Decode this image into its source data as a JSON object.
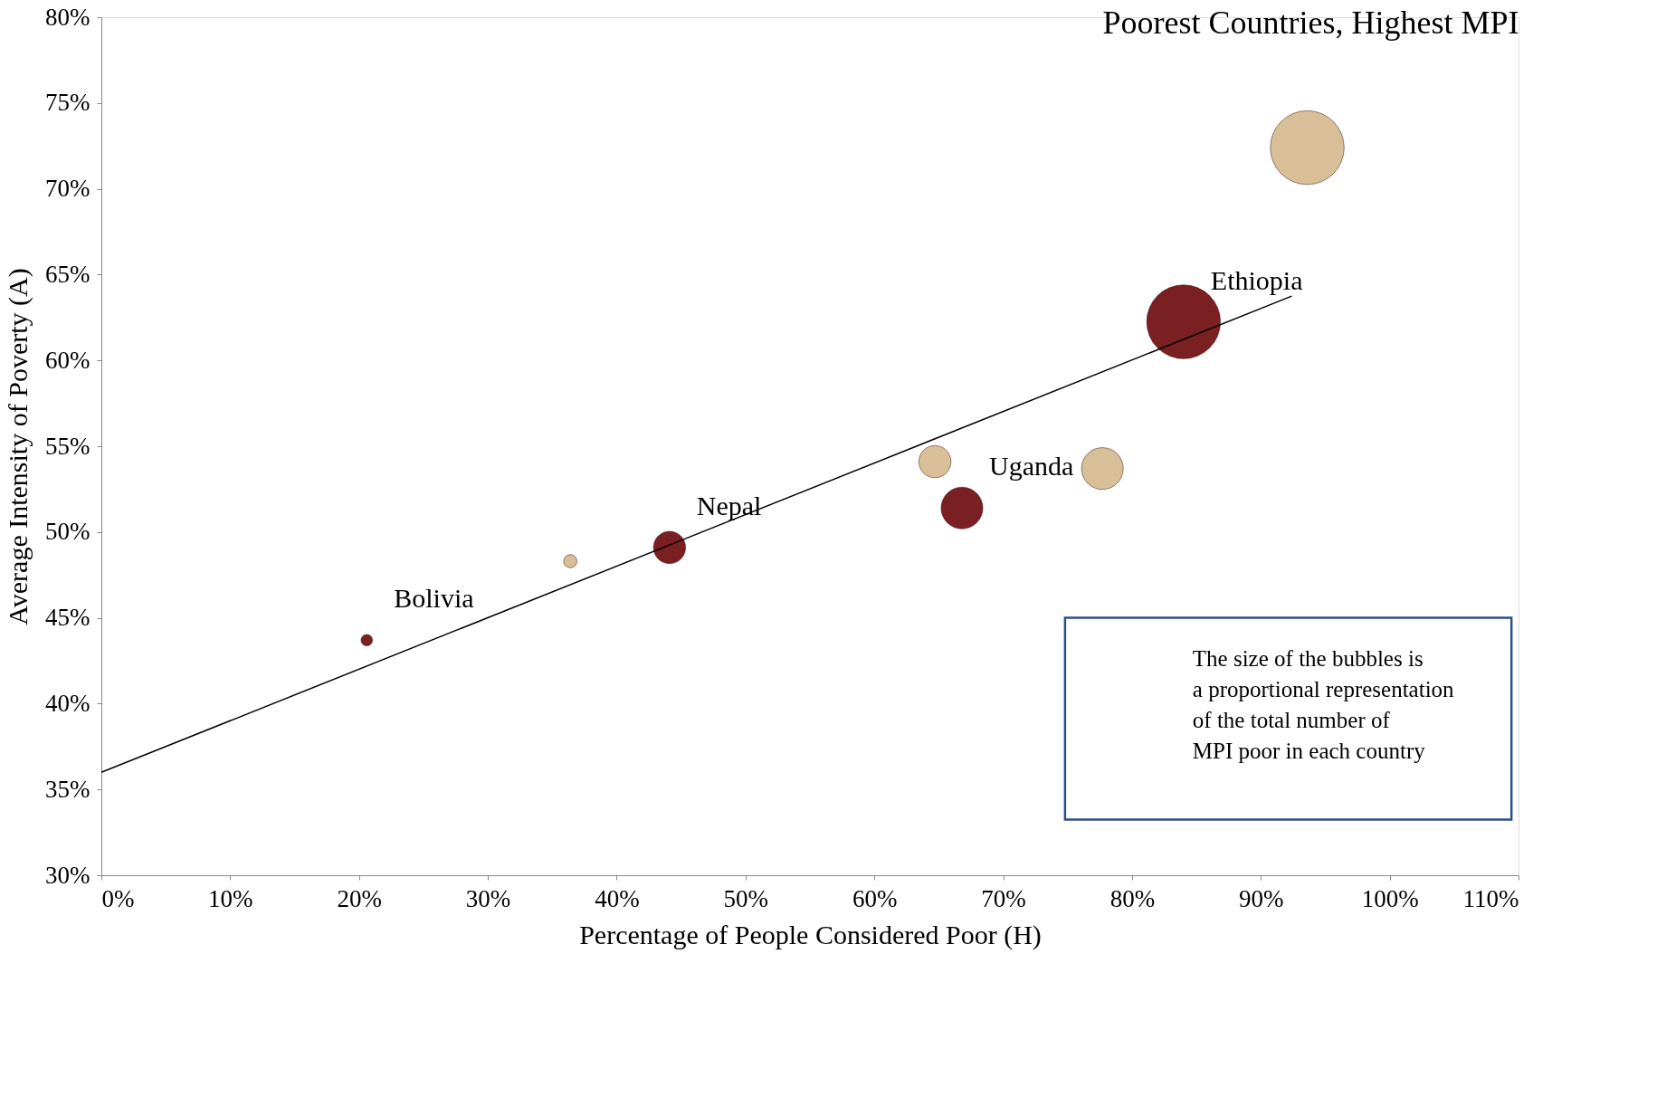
{
  "chart_data": {
    "type": "bubble",
    "title": "Poorest Countries, Highest MPI",
    "xlabel": "Percentage of  People Considered Poor (H)",
    "ylabel": "Average Intensity of Poverty (A)",
    "series": [
      {
        "color": "#7a1f22",
        "x": [
          20.6,
          44.1,
          66.8,
          84.0
        ],
        "values": [
          43.7,
          49.1,
          51.4,
          62.25
        ],
        "sizes": [
          0.024,
          0.19,
          0.32,
          1
        ]
      },
      {
        "color": "#d9bf98",
        "x": [
          36.4,
          64.7,
          77.7,
          93.6
        ],
        "values": [
          48.3,
          54.1,
          53.7,
          72.4
        ],
        "sizes": [
          0.032,
          0.19,
          0.32,
          1
        ]
      },
      {
        "type": "line",
        "color": "#000000",
        "x": [
          0,
          92.4
        ],
        "values": [
          36,
          63.75
        ]
      }
    ],
    "annotations": [
      {
        "text": "Bolivia",
        "x": 20.6,
        "y": 43.7
      },
      {
        "text": "Nepal",
        "x": 44.1,
        "y": 49.1
      },
      {
        "text": "Uganda",
        "x": 66.8,
        "y": 51.4
      },
      {
        "text": "Ethiopia",
        "x": 84.0,
        "y": 62.25
      },
      "The size of the bubbles is\na proportional representation\nof  the total number of\nMPI poor in each country"
    ],
    "xlim": [
      0,
      110
    ],
    "ylim": [
      30,
      80
    ],
    "xticks": [
      {
        "value": 0,
        "label": "0%"
      },
      {
        "value": 10,
        "label": "10%"
      },
      {
        "value": 20,
        "label": "20%"
      },
      {
        "value": 30,
        "label": "30%"
      },
      {
        "value": 40,
        "label": "40%"
      },
      {
        "value": 50,
        "label": "50%"
      },
      {
        "value": 60,
        "label": "60%"
      },
      {
        "value": 70,
        "label": "70%"
      },
      {
        "value": 80,
        "label": "80%"
      },
      {
        "value": 90,
        "label": "90%"
      },
      {
        "value": 100,
        "label": "100%"
      },
      {
        "value": 110,
        "label": "110%"
      }
    ],
    "yticks": [
      {
        "value": 30,
        "label": "30%"
      },
      {
        "value": 35,
        "label": "35%"
      },
      {
        "value": 40,
        "label": "40%"
      },
      {
        "value": 45,
        "label": "45%"
      },
      {
        "value": 50,
        "label": "50%"
      },
      {
        "value": 55,
        "label": "55%"
      },
      {
        "value": 60,
        "label": "60%"
      },
      {
        "value": 65,
        "label": "65%"
      },
      {
        "value": 70,
        "label": "70%"
      },
      {
        "value": 75,
        "label": "75%"
      },
      {
        "value": 80,
        "label": "80%"
      }
    ],
    "grid": false
  }
}
